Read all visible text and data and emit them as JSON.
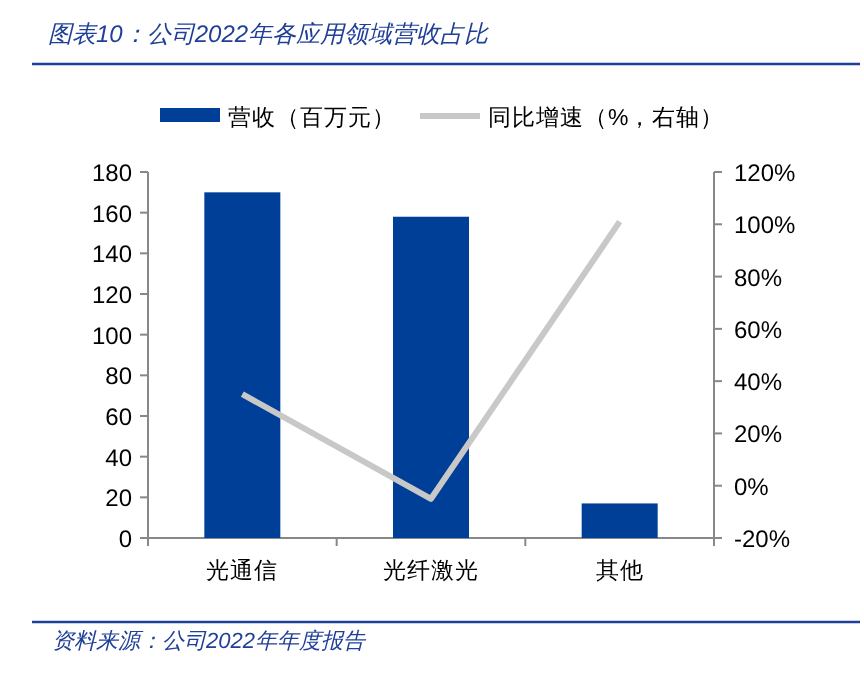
{
  "chart_data": {
    "type": "bar",
    "title": "图表10：公司2022年各应用领域营收占比",
    "categories": [
      "光通信",
      "光纤激光",
      "其他"
    ],
    "series": [
      {
        "name": "营收（百万元）",
        "color": "#003f98",
        "values": [
          170,
          158,
          17
        ]
      },
      {
        "name": "同比增速（%，右轴）",
        "color": "#c8c8c8",
        "type": "line",
        "axis": "y2",
        "values": [
          35,
          -5,
          101
        ]
      }
    ],
    "ylim": [
      0,
      180
    ],
    "yticks": [
      0,
      20,
      40,
      60,
      80,
      100,
      120,
      140,
      160,
      180
    ],
    "y2lim": [
      -20,
      120
    ],
    "y2ticks": [
      {
        "value": -20,
        "label": "-20%"
      },
      {
        "value": 0,
        "label": "0%"
      },
      {
        "value": 20,
        "label": "20%"
      },
      {
        "value": 40,
        "label": "40%"
      },
      {
        "value": 60,
        "label": "60%"
      },
      {
        "value": 80,
        "label": "80%"
      },
      {
        "value": 100,
        "label": "100%"
      },
      {
        "value": 120,
        "label": "120%"
      }
    ],
    "legend": "top",
    "grid": false,
    "marker": "none",
    "annotations": [
      "资料来源：公司2022年年度报告"
    ]
  }
}
